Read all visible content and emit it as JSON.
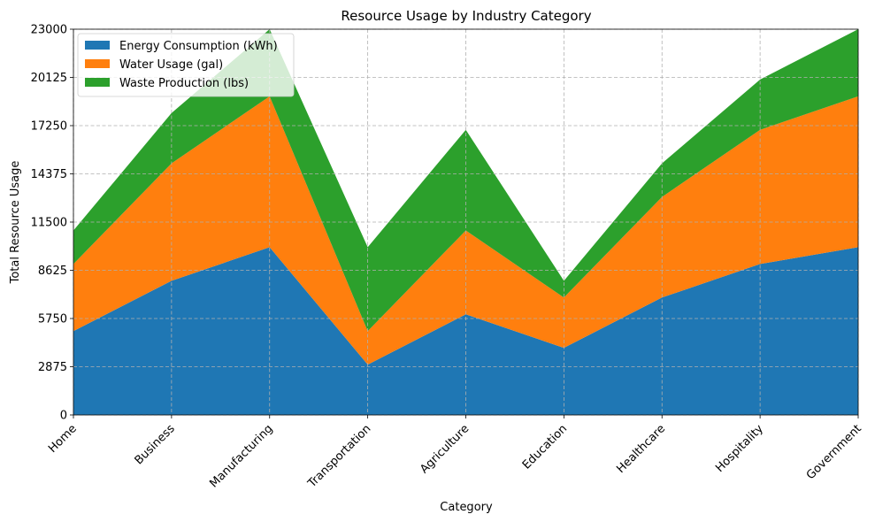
{
  "chart_data": {
    "type": "area",
    "stacked": true,
    "title": "Resource Usage by Industry Category",
    "xlabel": "Category",
    "ylabel": "Total Resource Usage",
    "categories": [
      "Home",
      "Business",
      "Manufacturing",
      "Transportation",
      "Agriculture",
      "Education",
      "Healthcare",
      "Hospitality",
      "Government"
    ],
    "series": [
      {
        "name": "Energy Consumption (kWh)",
        "color": "#1f77b4",
        "values": [
          5000,
          8000,
          10000,
          3000,
          6000,
          4000,
          7000,
          9000,
          10000
        ]
      },
      {
        "name": "Water Usage (gal)",
        "color": "#ff7f0e",
        "values": [
          4000,
          7000,
          9000,
          2000,
          5000,
          3000,
          6000,
          8000,
          9000
        ]
      },
      {
        "name": "Waste Production (lbs)",
        "color": "#2ca02c",
        "values": [
          2000,
          3000,
          4000,
          5000,
          6000,
          1000,
          2000,
          3000,
          4000
        ]
      }
    ],
    "ylim": [
      0,
      23000
    ],
    "yticks": [
      "0",
      "2875",
      "5750",
      "8625",
      "11500",
      "14375",
      "17250",
      "20125",
      "23000"
    ],
    "grid": true,
    "legend_position": "upper left"
  }
}
